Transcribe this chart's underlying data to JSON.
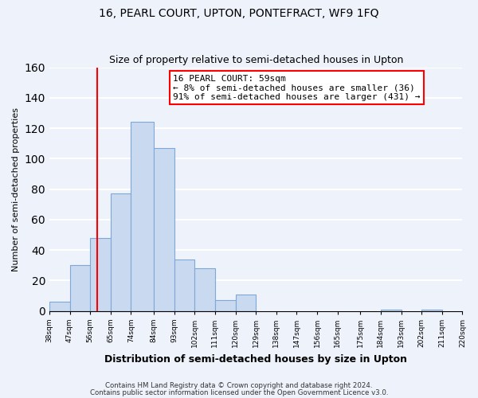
{
  "title1": "16, PEARL COURT, UPTON, PONTEFRACT, WF9 1FQ",
  "title2": "Size of property relative to semi-detached houses in Upton",
  "xlabel": "Distribution of semi-detached houses by size in Upton",
  "ylabel": "Number of semi-detached properties",
  "bin_edges": [
    38,
    47,
    56,
    65,
    74,
    84,
    93,
    102,
    111,
    120,
    129,
    138,
    147,
    156,
    165,
    175,
    184,
    193,
    202,
    211,
    220
  ],
  "bin_labels": [
    "38sqm",
    "47sqm",
    "56sqm",
    "65sqm",
    "74sqm",
    "84sqm",
    "93sqm",
    "102sqm",
    "111sqm",
    "120sqm",
    "129sqm",
    "138sqm",
    "147sqm",
    "156sqm",
    "165sqm",
    "175sqm",
    "184sqm",
    "193sqm",
    "202sqm",
    "211sqm",
    "220sqm"
  ],
  "counts": [
    6,
    30,
    48,
    77,
    124,
    107,
    34,
    28,
    7,
    11,
    0,
    0,
    0,
    0,
    0,
    0,
    1,
    0,
    1,
    0
  ],
  "bar_color": "#c9d9f0",
  "bar_edge_color": "#7ea8d8",
  "property_line_x": 59,
  "property_line_color": "red",
  "annotation_title": "16 PEARL COURT: 59sqm",
  "annotation_line1": "← 8% of semi-detached houses are smaller (36)",
  "annotation_line2": "91% of semi-detached houses are larger (431) →",
  "annotation_box_color": "white",
  "annotation_box_edge_color": "red",
  "ylim": [
    0,
    160
  ],
  "yticks": [
    0,
    20,
    40,
    60,
    80,
    100,
    120,
    140,
    160
  ],
  "footer1": "Contains HM Land Registry data © Crown copyright and database right 2024.",
  "footer2": "Contains public sector information licensed under the Open Government Licence v3.0.",
  "background_color": "#eef2fb",
  "grid_color": "white"
}
